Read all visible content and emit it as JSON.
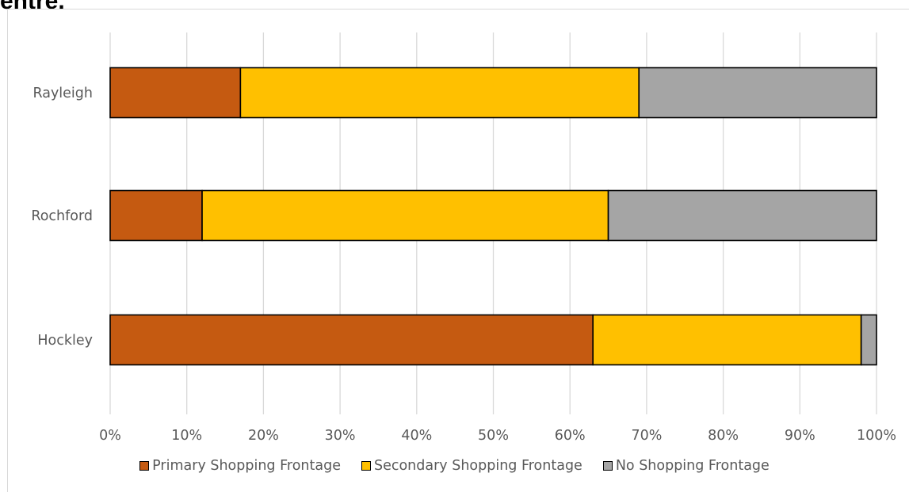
{
  "heading_fragment": "entre.",
  "chart_data": {
    "type": "bar",
    "orientation": "horizontal",
    "stacking": "percent",
    "categories": [
      "Rayleigh",
      "Rochford",
      "Hockley"
    ],
    "series": [
      {
        "name": "Primary Shopping Frontage",
        "values": [
          17,
          12,
          63
        ],
        "color": "#c55a11"
      },
      {
        "name": "Secondary Shopping Frontage",
        "values": [
          52,
          53,
          35
        ],
        "color": "#ffc000"
      },
      {
        "name": "No Shopping Frontage",
        "values": [
          31,
          35,
          2
        ],
        "color": "#a5a5a5"
      }
    ],
    "x_ticks": [
      "0%",
      "10%",
      "20%",
      "30%",
      "40%",
      "50%",
      "60%",
      "70%",
      "80%",
      "90%",
      "100%"
    ],
    "xlim": [
      0,
      100
    ],
    "title": "",
    "xlabel": "",
    "ylabel": "",
    "grid": true,
    "legend_position": "bottom",
    "gridline_color": "#d9d9d9",
    "label_color": "#595959",
    "bar_border_color": "#000000"
  }
}
